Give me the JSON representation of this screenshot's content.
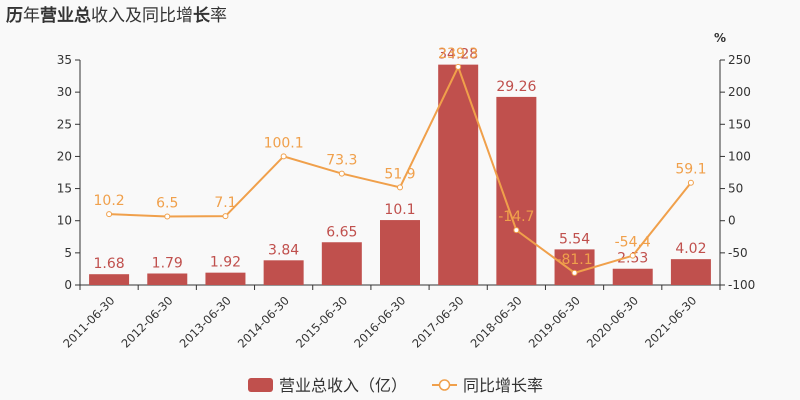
{
  "chart_data": {
    "type": "bar",
    "title_bold_1": "历",
    "title_1": "年",
    "title_bold_2": "营业总",
    "title_2": "收入及同比增",
    "title_bold_3": "长",
    "title_3": "率",
    "categories": [
      "2011-06-30",
      "2012-06-30",
      "2013-06-30",
      "2014-06-30",
      "2015-06-30",
      "2016-06-30",
      "2017-06-30",
      "2018-06-30",
      "2019-06-30",
      "2020-06-30",
      "2021-06-30"
    ],
    "series": [
      {
        "name": "营业总收入（亿）",
        "type": "bar",
        "axis": "left",
        "color": "#c0504d",
        "values": [
          1.68,
          1.79,
          1.92,
          3.84,
          6.65,
          10.1,
          34.28,
          29.26,
          5.54,
          2.53,
          4.02
        ],
        "labels": [
          "1.68",
          "1.79",
          "1.92",
          "3.84",
          "6.65",
          "10.1",
          "34.28",
          "29.26",
          "5.54",
          "2.53",
          "4.02"
        ]
      },
      {
        "name": "同比增长率",
        "type": "line",
        "axis": "right",
        "color": "#f0a04b",
        "values": [
          10.2,
          6.5,
          7.1,
          100.1,
          73.3,
          51.9,
          239.3,
          -14.7,
          -81.1,
          -54.4,
          59.1
        ],
        "labels": [
          "10.2",
          "6.5",
          "7.1",
          "100.1",
          "73.3",
          "51.9",
          "239.3",
          "-14.7",
          "-81.1",
          "-54.4",
          "59.1"
        ]
      }
    ],
    "y_left": {
      "min": 0,
      "max": 35,
      "ticks": [
        0,
        5,
        10,
        15,
        20,
        25,
        30,
        35
      ]
    },
    "y_right": {
      "min": -100,
      "max": 250,
      "ticks": [
        -100,
        -50,
        0,
        50,
        100,
        150,
        200,
        250
      ],
      "unit": "%"
    },
    "legend_position": "bottom",
    "grid": false
  }
}
